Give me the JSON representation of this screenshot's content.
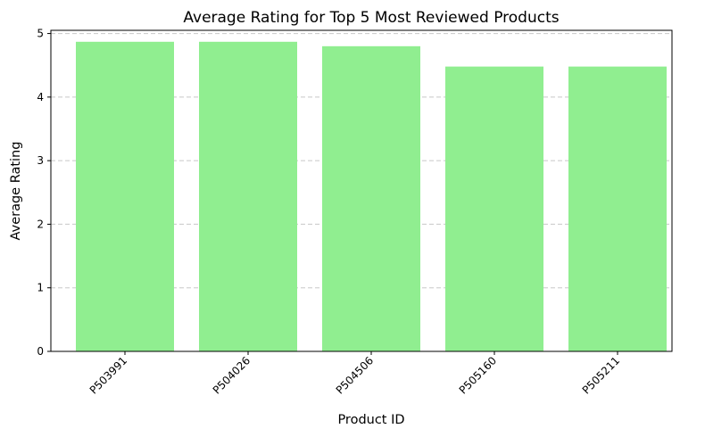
{
  "chart_data": {
    "type": "bar",
    "title": "Average Rating for Top 5 Most Reviewed Products",
    "xlabel": "Product ID",
    "ylabel": "Average Rating",
    "categories": [
      "P503991",
      "P504026",
      "P504506",
      "P505160",
      "P505211"
    ],
    "values": [
      4.87,
      4.87,
      4.8,
      4.48,
      4.48
    ],
    "ylim": [
      0,
      5.05
    ],
    "yticks": [
      0,
      1,
      2,
      3,
      4,
      5
    ],
    "grid": "y-dashed",
    "bar_color": "#90ee90"
  }
}
